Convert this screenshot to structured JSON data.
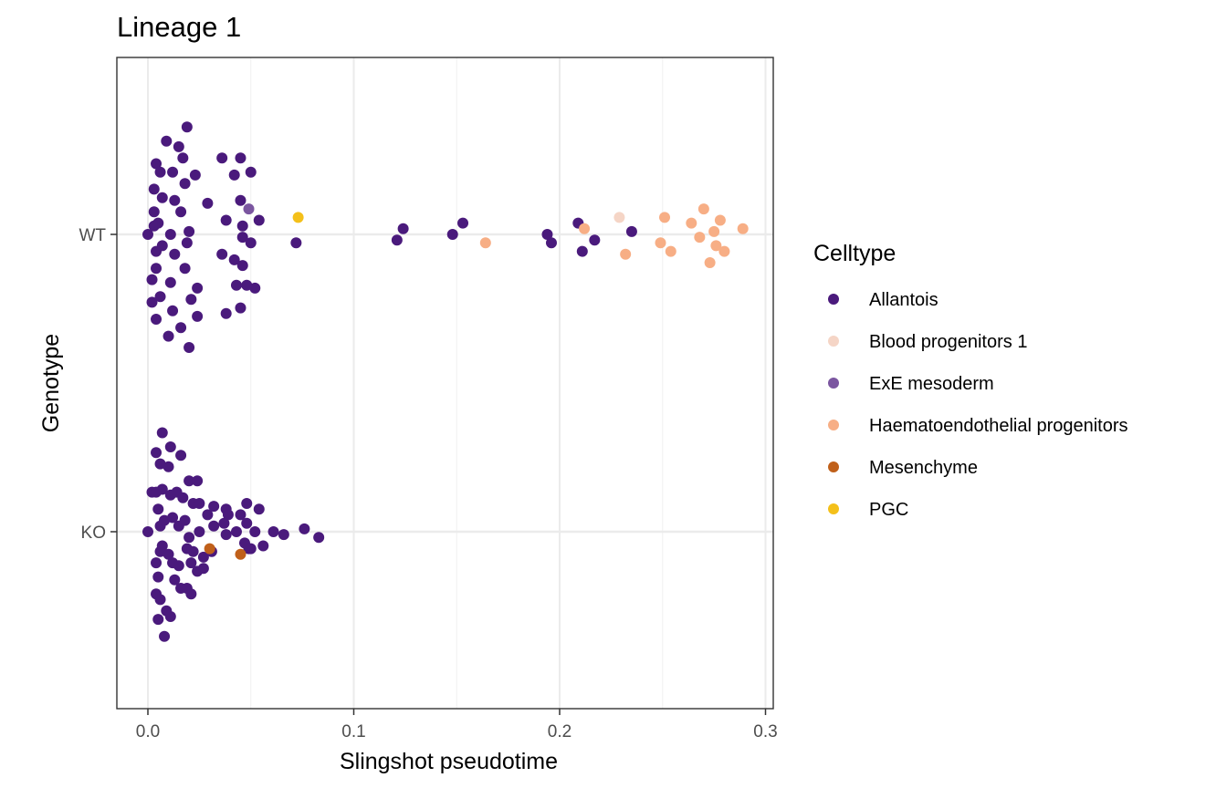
{
  "chart_data": {
    "type": "scatter",
    "title": "Lineage 1",
    "xlabel": "Slingshot pseudotime",
    "ylabel": "Genotype",
    "xlim": [
      -0.014,
      0.3
    ],
    "x_ticks": [
      0.0,
      0.1,
      0.2,
      0.3
    ],
    "x_tick_labels": [
      "0.0",
      "0.1",
      "0.2",
      "0.3"
    ],
    "categories": [
      "KO",
      "WT"
    ],
    "grid": true,
    "legend": {
      "title": "Celltype",
      "position": "right",
      "items": [
        {
          "label": "Allantois",
          "color": "#4a1a7c"
        },
        {
          "label": "Blood progenitors 1",
          "color": "#f5d5c6"
        },
        {
          "label": "ExE mesoderm",
          "color": "#7b56a0"
        },
        {
          "label": "Haematoendothelial progenitors",
          "color": "#f7ae85"
        },
        {
          "label": "Mesenchyme",
          "color": "#c0601a"
        },
        {
          "label": "PGC",
          "color": "#f4c01a"
        }
      ]
    },
    "series": [
      {
        "name": "Allantois",
        "color": "#4a1a7c",
        "points": [
          {
            "x": 0.0,
            "y": "WT",
            "j": 0.0
          },
          {
            "x": 0.002,
            "y": "WT",
            "j": -0.16
          },
          {
            "x": 0.002,
            "y": "WT",
            "j": -0.24
          },
          {
            "x": 0.003,
            "y": "WT",
            "j": 0.16
          },
          {
            "x": 0.003,
            "y": "WT",
            "j": 0.08
          },
          {
            "x": 0.003,
            "y": "WT",
            "j": 0.03
          },
          {
            "x": 0.004,
            "y": "WT",
            "j": 0.25
          },
          {
            "x": 0.004,
            "y": "WT",
            "j": -0.06
          },
          {
            "x": 0.004,
            "y": "WT",
            "j": -0.12
          },
          {
            "x": 0.004,
            "y": "WT",
            "j": -0.3
          },
          {
            "x": 0.005,
            "y": "WT",
            "j": 0.04
          },
          {
            "x": 0.006,
            "y": "WT",
            "j": 0.22
          },
          {
            "x": 0.006,
            "y": "WT",
            "j": -0.22
          },
          {
            "x": 0.007,
            "y": "WT",
            "j": 0.13
          },
          {
            "x": 0.007,
            "y": "WT",
            "j": -0.04
          },
          {
            "x": 0.009,
            "y": "WT",
            "j": 0.33
          },
          {
            "x": 0.01,
            "y": "WT",
            "j": -0.36
          },
          {
            "x": 0.011,
            "y": "WT",
            "j": 0.0
          },
          {
            "x": 0.011,
            "y": "WT",
            "j": -0.17
          },
          {
            "x": 0.012,
            "y": "WT",
            "j": 0.22
          },
          {
            "x": 0.012,
            "y": "WT",
            "j": -0.27
          },
          {
            "x": 0.013,
            "y": "WT",
            "j": 0.12
          },
          {
            "x": 0.013,
            "y": "WT",
            "j": -0.07
          },
          {
            "x": 0.015,
            "y": "WT",
            "j": 0.31
          },
          {
            "x": 0.016,
            "y": "WT",
            "j": 0.08
          },
          {
            "x": 0.016,
            "y": "WT",
            "j": -0.33
          },
          {
            "x": 0.017,
            "y": "WT",
            "j": 0.27
          },
          {
            "x": 0.018,
            "y": "WT",
            "j": 0.18
          },
          {
            "x": 0.018,
            "y": "WT",
            "j": -0.12
          },
          {
            "x": 0.019,
            "y": "WT",
            "j": 0.38
          },
          {
            "x": 0.019,
            "y": "WT",
            "j": -0.03
          },
          {
            "x": 0.02,
            "y": "WT",
            "j": 0.01
          },
          {
            "x": 0.02,
            "y": "WT",
            "j": -0.4
          },
          {
            "x": 0.021,
            "y": "WT",
            "j": -0.23
          },
          {
            "x": 0.023,
            "y": "WT",
            "j": 0.21
          },
          {
            "x": 0.024,
            "y": "WT",
            "j": -0.19
          },
          {
            "x": 0.024,
            "y": "WT",
            "j": -0.29
          },
          {
            "x": 0.029,
            "y": "WT",
            "j": 0.11
          },
          {
            "x": 0.036,
            "y": "WT",
            "j": 0.27
          },
          {
            "x": 0.036,
            "y": "WT",
            "j": -0.07
          },
          {
            "x": 0.038,
            "y": "WT",
            "j": 0.05
          },
          {
            "x": 0.038,
            "y": "WT",
            "j": -0.28
          },
          {
            "x": 0.042,
            "y": "WT",
            "j": 0.21
          },
          {
            "x": 0.042,
            "y": "WT",
            "j": -0.09
          },
          {
            "x": 0.043,
            "y": "WT",
            "j": -0.18
          },
          {
            "x": 0.045,
            "y": "WT",
            "j": 0.27
          },
          {
            "x": 0.045,
            "y": "WT",
            "j": 0.12
          },
          {
            "x": 0.045,
            "y": "WT",
            "j": -0.26
          },
          {
            "x": 0.046,
            "y": "WT",
            "j": 0.03
          },
          {
            "x": 0.046,
            "y": "WT",
            "j": -0.01
          },
          {
            "x": 0.046,
            "y": "WT",
            "j": -0.11
          },
          {
            "x": 0.048,
            "y": "WT",
            "j": -0.18
          },
          {
            "x": 0.05,
            "y": "WT",
            "j": 0.22
          },
          {
            "x": 0.05,
            "y": "WT",
            "j": -0.03
          },
          {
            "x": 0.052,
            "y": "WT",
            "j": -0.19
          },
          {
            "x": 0.054,
            "y": "WT",
            "j": 0.05
          },
          {
            "x": 0.072,
            "y": "WT",
            "j": -0.03
          },
          {
            "x": 0.121,
            "y": "WT",
            "j": -0.02
          },
          {
            "x": 0.124,
            "y": "WT",
            "j": 0.02
          },
          {
            "x": 0.148,
            "y": "WT",
            "j": 0.0
          },
          {
            "x": 0.153,
            "y": "WT",
            "j": 0.04
          },
          {
            "x": 0.194,
            "y": "WT",
            "j": 0.0
          },
          {
            "x": 0.196,
            "y": "WT",
            "j": -0.03
          },
          {
            "x": 0.209,
            "y": "WT",
            "j": 0.04
          },
          {
            "x": 0.211,
            "y": "WT",
            "j": -0.06
          },
          {
            "x": 0.217,
            "y": "WT",
            "j": -0.02
          },
          {
            "x": 0.235,
            "y": "WT",
            "j": 0.01
          },
          {
            "x": 0.0,
            "y": "KO",
            "j": 0.0
          },
          {
            "x": 0.002,
            "y": "KO",
            "j": 0.14
          },
          {
            "x": 0.004,
            "y": "KO",
            "j": -0.11
          },
          {
            "x": 0.004,
            "y": "KO",
            "j": -0.22
          },
          {
            "x": 0.004,
            "y": "KO",
            "j": 0.28
          },
          {
            "x": 0.004,
            "y": "KO",
            "j": 0.14
          },
          {
            "x": 0.005,
            "y": "KO",
            "j": 0.08
          },
          {
            "x": 0.005,
            "y": "KO",
            "j": -0.16
          },
          {
            "x": 0.005,
            "y": "KO",
            "j": -0.31
          },
          {
            "x": 0.006,
            "y": "KO",
            "j": 0.24
          },
          {
            "x": 0.006,
            "y": "KO",
            "j": 0.02
          },
          {
            "x": 0.006,
            "y": "KO",
            "j": -0.07
          },
          {
            "x": 0.006,
            "y": "KO",
            "j": -0.24
          },
          {
            "x": 0.007,
            "y": "KO",
            "j": 0.35
          },
          {
            "x": 0.007,
            "y": "KO",
            "j": 0.15
          },
          {
            "x": 0.007,
            "y": "KO",
            "j": -0.05
          },
          {
            "x": 0.008,
            "y": "KO",
            "j": 0.04
          },
          {
            "x": 0.008,
            "y": "KO",
            "j": -0.37
          },
          {
            "x": 0.009,
            "y": "KO",
            "j": -0.28
          },
          {
            "x": 0.01,
            "y": "KO",
            "j": 0.23
          },
          {
            "x": 0.01,
            "y": "KO",
            "j": -0.08
          },
          {
            "x": 0.011,
            "y": "KO",
            "j": 0.3
          },
          {
            "x": 0.011,
            "y": "KO",
            "j": 0.13
          },
          {
            "x": 0.011,
            "y": "KO",
            "j": -0.3
          },
          {
            "x": 0.012,
            "y": "KO",
            "j": 0.05
          },
          {
            "x": 0.012,
            "y": "KO",
            "j": -0.11
          },
          {
            "x": 0.013,
            "y": "KO",
            "j": -0.17
          },
          {
            "x": 0.014,
            "y": "KO",
            "j": 0.14
          },
          {
            "x": 0.015,
            "y": "KO",
            "j": 0.02
          },
          {
            "x": 0.015,
            "y": "KO",
            "j": -0.12
          },
          {
            "x": 0.016,
            "y": "KO",
            "j": 0.27
          },
          {
            "x": 0.016,
            "y": "KO",
            "j": -0.2
          },
          {
            "x": 0.017,
            "y": "KO",
            "j": 0.12
          },
          {
            "x": 0.018,
            "y": "KO",
            "j": 0.04
          },
          {
            "x": 0.019,
            "y": "KO",
            "j": -0.06
          },
          {
            "x": 0.019,
            "y": "KO",
            "j": -0.2
          },
          {
            "x": 0.02,
            "y": "KO",
            "j": 0.18
          },
          {
            "x": 0.02,
            "y": "KO",
            "j": -0.02
          },
          {
            "x": 0.021,
            "y": "KO",
            "j": -0.11
          },
          {
            "x": 0.021,
            "y": "KO",
            "j": -0.22
          },
          {
            "x": 0.022,
            "y": "KO",
            "j": 0.1
          },
          {
            "x": 0.022,
            "y": "KO",
            "j": -0.07
          },
          {
            "x": 0.024,
            "y": "KO",
            "j": 0.18
          },
          {
            "x": 0.024,
            "y": "KO",
            "j": -0.14
          },
          {
            "x": 0.025,
            "y": "KO",
            "j": 0.1
          },
          {
            "x": 0.025,
            "y": "KO",
            "j": 0.0
          },
          {
            "x": 0.027,
            "y": "KO",
            "j": -0.09
          },
          {
            "x": 0.027,
            "y": "KO",
            "j": -0.13
          },
          {
            "x": 0.029,
            "y": "KO",
            "j": 0.06
          },
          {
            "x": 0.031,
            "y": "KO",
            "j": -0.07
          },
          {
            "x": 0.032,
            "y": "KO",
            "j": 0.09
          },
          {
            "x": 0.032,
            "y": "KO",
            "j": 0.02
          },
          {
            "x": 0.037,
            "y": "KO",
            "j": 0.03
          },
          {
            "x": 0.038,
            "y": "KO",
            "j": 0.08
          },
          {
            "x": 0.038,
            "y": "KO",
            "j": -0.01
          },
          {
            "x": 0.039,
            "y": "KO",
            "j": 0.06
          },
          {
            "x": 0.043,
            "y": "KO",
            "j": 0.0
          },
          {
            "x": 0.045,
            "y": "KO",
            "j": 0.06
          },
          {
            "x": 0.047,
            "y": "KO",
            "j": -0.04
          },
          {
            "x": 0.048,
            "y": "KO",
            "j": 0.1
          },
          {
            "x": 0.048,
            "y": "KO",
            "j": 0.03
          },
          {
            "x": 0.049,
            "y": "KO",
            "j": -0.06
          },
          {
            "x": 0.05,
            "y": "KO",
            "j": -0.06
          },
          {
            "x": 0.052,
            "y": "KO",
            "j": 0.0
          },
          {
            "x": 0.054,
            "y": "KO",
            "j": 0.08
          },
          {
            "x": 0.056,
            "y": "KO",
            "j": -0.05
          },
          {
            "x": 0.061,
            "y": "KO",
            "j": 0.0
          },
          {
            "x": 0.066,
            "y": "KO",
            "j": -0.01
          },
          {
            "x": 0.076,
            "y": "KO",
            "j": 0.01
          },
          {
            "x": 0.083,
            "y": "KO",
            "j": -0.02
          }
        ]
      },
      {
        "name": "Blood progenitors 1",
        "color": "#f5d5c6",
        "points": [
          {
            "x": 0.229,
            "y": "WT",
            "j": 0.06
          }
        ]
      },
      {
        "name": "ExE mesoderm",
        "color": "#7b56a0",
        "points": [
          {
            "x": 0.049,
            "y": "WT",
            "j": 0.09
          }
        ]
      },
      {
        "name": "Haematoendothelial progenitors",
        "color": "#f7ae85",
        "points": [
          {
            "x": 0.164,
            "y": "WT",
            "j": -0.03
          },
          {
            "x": 0.212,
            "y": "WT",
            "j": 0.02
          },
          {
            "x": 0.232,
            "y": "WT",
            "j": -0.07
          },
          {
            "x": 0.249,
            "y": "WT",
            "j": -0.03
          },
          {
            "x": 0.251,
            "y": "WT",
            "j": 0.06
          },
          {
            "x": 0.254,
            "y": "WT",
            "j": -0.06
          },
          {
            "x": 0.264,
            "y": "WT",
            "j": 0.04
          },
          {
            "x": 0.268,
            "y": "WT",
            "j": -0.01
          },
          {
            "x": 0.27,
            "y": "WT",
            "j": 0.09
          },
          {
            "x": 0.273,
            "y": "WT",
            "j": -0.1
          },
          {
            "x": 0.275,
            "y": "WT",
            "j": 0.01
          },
          {
            "x": 0.276,
            "y": "WT",
            "j": -0.04
          },
          {
            "x": 0.278,
            "y": "WT",
            "j": 0.05
          },
          {
            "x": 0.28,
            "y": "WT",
            "j": -0.06
          },
          {
            "x": 0.289,
            "y": "WT",
            "j": 0.02
          }
        ]
      },
      {
        "name": "Mesenchyme",
        "color": "#c0601a",
        "points": [
          {
            "x": 0.03,
            "y": "KO",
            "j": -0.06
          },
          {
            "x": 0.045,
            "y": "KO",
            "j": -0.08
          }
        ]
      },
      {
        "name": "PGC",
        "color": "#f4c01a",
        "points": [
          {
            "x": 0.073,
            "y": "WT",
            "j": 0.06
          }
        ]
      }
    ]
  }
}
